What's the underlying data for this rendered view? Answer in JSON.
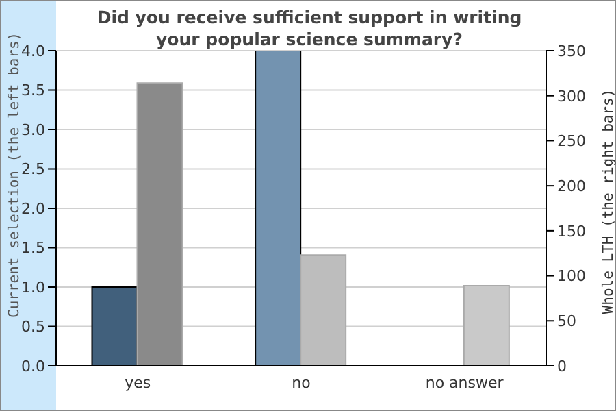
{
  "chart_data": {
    "type": "bar",
    "title": "Did you receive sufficient support in writing your popular science summary?",
    "categories": [
      "yes",
      "no",
      "no answer"
    ],
    "series": [
      {
        "colors": [
          "#41607c",
          "#7393b0",
          "#9fb6cc"
        ],
        "values": [
          1,
          4,
          0
        ]
      },
      {
        "colors": [
          "#8a8a8a",
          "#bdbdbd",
          "#c9c9c9"
        ],
        "values": [
          314,
          123,
          89
        ],
        "axis": "y2"
      }
    ],
    "ylabel": "Current selection (the left bars)",
    "y2label": "Whole LTH (the right bars)",
    "ylim": [
      0,
      4
    ],
    "yticks": [
      {
        "value": 0,
        "label": "0.0"
      },
      {
        "value": 0.5,
        "label": "0.5"
      },
      {
        "value": 1,
        "label": "1.0"
      },
      {
        "value": 1.5,
        "label": "1.5"
      },
      {
        "value": 2,
        "label": "2.0"
      },
      {
        "value": 2.5,
        "label": "2.5"
      },
      {
        "value": 3,
        "label": "3.0"
      },
      {
        "value": 3.5,
        "label": "3.5"
      },
      {
        "value": 4,
        "label": "4.0"
      }
    ],
    "y2lim": [
      0,
      350
    ],
    "y2ticks": [
      0,
      50,
      100,
      150,
      200,
      250,
      300,
      350
    ],
    "grid": "y",
    "legend": false
  }
}
